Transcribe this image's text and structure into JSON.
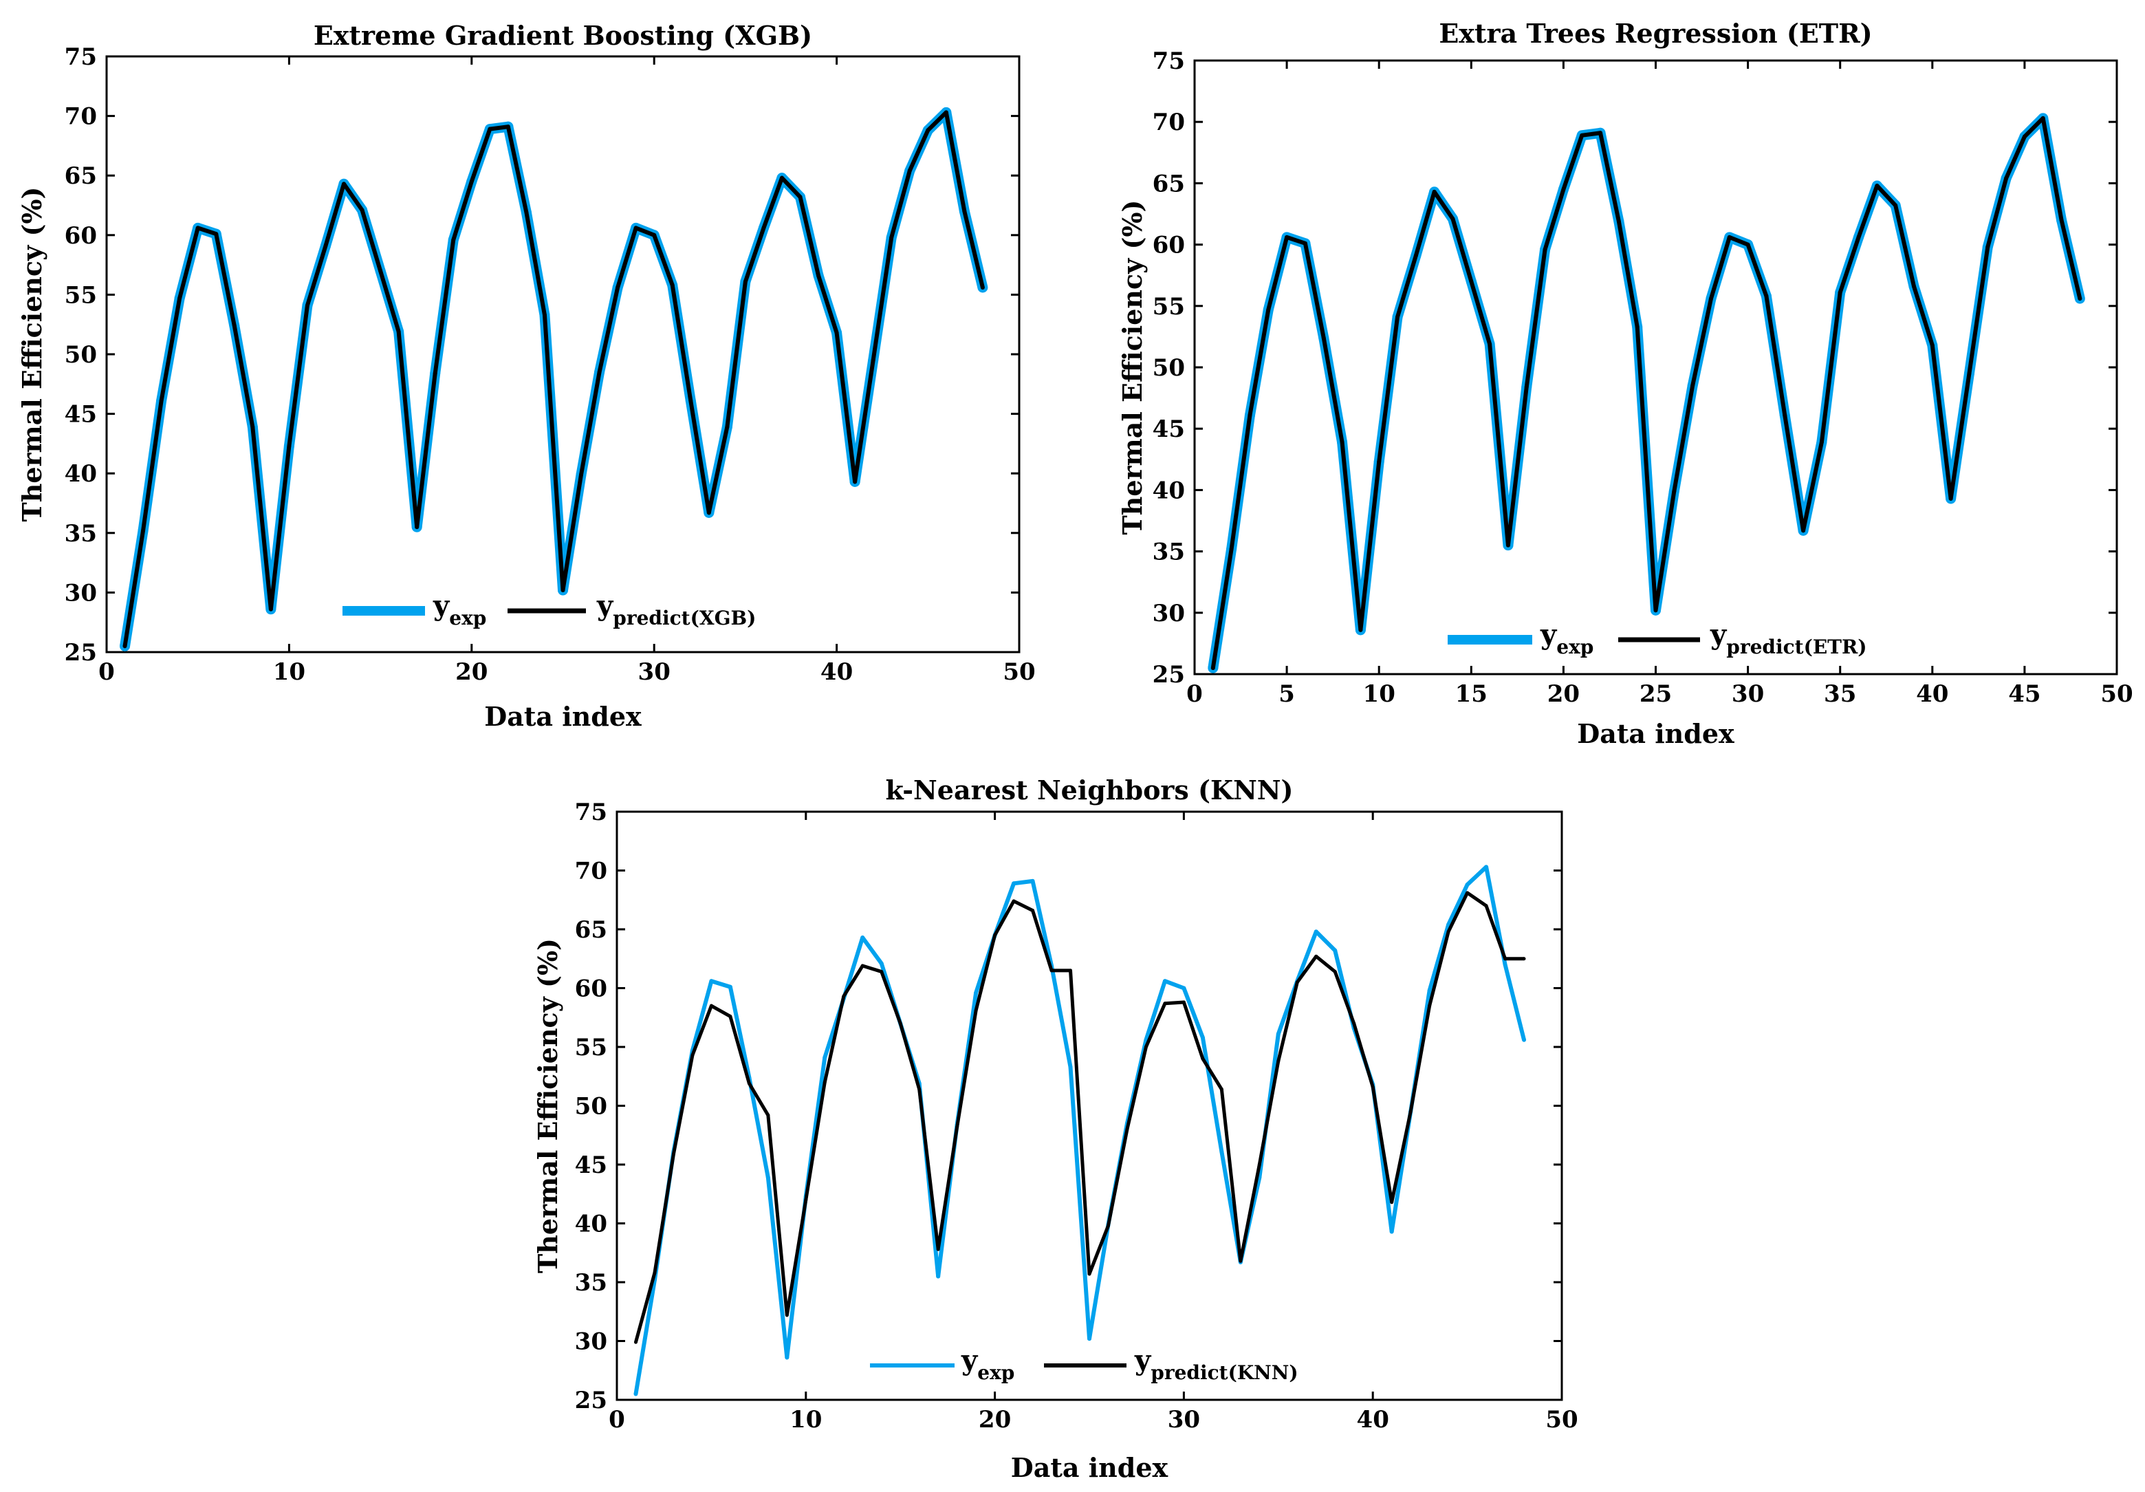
{
  "chart_data": [
    {
      "type": "line",
      "title": "Extreme Gradient Boosting (XGB)",
      "xlabel": "Data index",
      "ylabel": "Thermal Efficiency (%)",
      "xlim": [
        0,
        50
      ],
      "ylim": [
        25,
        75
      ],
      "xticks": [
        "0",
        "10",
        "20",
        "30",
        "40",
        "50"
      ],
      "yticks": [
        "25",
        "30",
        "35",
        "40",
        "45",
        "50",
        "55",
        "60",
        "65",
        "70",
        "75"
      ],
      "legend": [
        {
          "base": "y",
          "sub": "exp"
        },
        {
          "base": "y",
          "sub": "predict(XGB)"
        }
      ],
      "x": [
        1,
        2,
        3,
        4,
        5,
        6,
        7,
        8,
        9,
        10,
        11,
        12,
        13,
        14,
        15,
        16,
        17,
        18,
        19,
        20,
        21,
        22,
        23,
        24,
        25,
        26,
        27,
        28,
        29,
        30,
        31,
        32,
        33,
        34,
        35,
        36,
        37,
        38,
        39,
        40,
        41,
        42,
        43,
        44,
        45,
        46,
        47,
        48
      ],
      "series": [
        {
          "name": "y_exp",
          "color": "#00A2EE",
          "values": [
            25.5,
            35.2,
            46.1,
            54.7,
            60.6,
            60.1,
            52.4,
            43.9,
            28.6,
            42.3,
            54.1,
            59.1,
            64.3,
            62.1,
            57.0,
            51.9,
            35.5,
            48.4,
            59.6,
            64.5,
            68.9,
            69.1,
            61.9,
            53.3,
            30.2,
            39.9,
            48.5,
            55.6,
            60.6,
            60.0,
            55.8,
            46.1,
            36.7,
            43.9,
            56.1,
            60.6,
            64.8,
            63.2,
            56.6,
            51.8,
            39.3,
            49.5,
            59.8,
            65.4,
            68.8,
            70.3,
            62.0,
            55.6
          ]
        },
        {
          "name": "y_predict(XGB)",
          "color": "#000000",
          "values": [
            25.5,
            35.2,
            46.1,
            54.7,
            60.6,
            60.1,
            52.4,
            43.9,
            28.6,
            42.3,
            54.1,
            59.1,
            64.3,
            62.1,
            57.0,
            51.9,
            35.5,
            48.4,
            59.6,
            64.5,
            68.9,
            69.1,
            61.9,
            53.3,
            30.2,
            39.9,
            48.5,
            55.6,
            60.6,
            60.0,
            55.8,
            46.1,
            36.7,
            43.9,
            56.1,
            60.6,
            64.8,
            63.2,
            56.6,
            51.8,
            39.3,
            49.5,
            59.8,
            65.4,
            68.8,
            70.3,
            62.0,
            55.6
          ]
        }
      ]
    },
    {
      "type": "line",
      "title": "Extra Trees Regression (ETR)",
      "xlabel": "Data index",
      "ylabel": "Thermal Efficiency (%)",
      "xlim": [
        0,
        50
      ],
      "ylim": [
        25,
        75
      ],
      "xticks": [
        "0",
        "5",
        "10",
        "15",
        "20",
        "25",
        "30",
        "35",
        "40",
        "45",
        "50"
      ],
      "yticks": [
        "25",
        "30",
        "35",
        "40",
        "45",
        "50",
        "55",
        "60",
        "65",
        "70",
        "75"
      ],
      "legend": [
        {
          "base": "y",
          "sub": "exp"
        },
        {
          "base": "y",
          "sub": "predict(ETR)"
        }
      ],
      "x": [
        1,
        2,
        3,
        4,
        5,
        6,
        7,
        8,
        9,
        10,
        11,
        12,
        13,
        14,
        15,
        16,
        17,
        18,
        19,
        20,
        21,
        22,
        23,
        24,
        25,
        26,
        27,
        28,
        29,
        30,
        31,
        32,
        33,
        34,
        35,
        36,
        37,
        38,
        39,
        40,
        41,
        42,
        43,
        44,
        45,
        46,
        47,
        48
      ],
      "series": [
        {
          "name": "y_exp",
          "color": "#00A2EE",
          "values": [
            25.5,
            35.2,
            46.1,
            54.7,
            60.6,
            60.1,
            52.4,
            43.9,
            28.6,
            42.3,
            54.1,
            59.1,
            64.3,
            62.1,
            57.0,
            51.9,
            35.5,
            48.4,
            59.6,
            64.5,
            68.9,
            69.1,
            61.9,
            53.3,
            30.2,
            39.9,
            48.5,
            55.6,
            60.6,
            60.0,
            55.8,
            46.1,
            36.7,
            43.9,
            56.1,
            60.6,
            64.8,
            63.2,
            56.6,
            51.8,
            39.3,
            49.5,
            59.8,
            65.4,
            68.8,
            70.3,
            62.0,
            55.6
          ]
        },
        {
          "name": "y_predict(ETR)",
          "color": "#000000",
          "values": [
            25.5,
            35.2,
            46.1,
            54.7,
            60.6,
            60.1,
            52.4,
            43.9,
            28.6,
            42.3,
            54.1,
            59.1,
            64.3,
            62.1,
            57.0,
            51.9,
            35.5,
            48.4,
            59.6,
            64.5,
            68.9,
            69.1,
            61.9,
            53.3,
            30.2,
            39.9,
            48.5,
            55.6,
            60.6,
            60.0,
            55.8,
            46.1,
            36.7,
            43.9,
            56.1,
            60.6,
            64.8,
            63.2,
            56.6,
            51.8,
            39.3,
            49.5,
            59.8,
            65.4,
            68.8,
            70.3,
            62.0,
            55.6
          ]
        }
      ]
    },
    {
      "type": "line",
      "title": "k-Nearest Neighbors (KNN)",
      "xlabel": "Data index",
      "ylabel": "Thermal Efficiency (%)",
      "xlim": [
        0,
        50
      ],
      "ylim": [
        25,
        75
      ],
      "xticks": [
        "0",
        "10",
        "20",
        "30",
        "40",
        "50"
      ],
      "yticks": [
        "25",
        "30",
        "35",
        "40",
        "45",
        "50",
        "55",
        "60",
        "65",
        "70",
        "75"
      ],
      "legend": [
        {
          "base": "y",
          "sub": "exp"
        },
        {
          "base": "y",
          "sub": "predict(KNN)"
        }
      ],
      "x": [
        1,
        2,
        3,
        4,
        5,
        6,
        7,
        8,
        9,
        10,
        11,
        12,
        13,
        14,
        15,
        16,
        17,
        18,
        19,
        20,
        21,
        22,
        23,
        24,
        25,
        26,
        27,
        28,
        29,
        30,
        31,
        32,
        33,
        34,
        35,
        36,
        37,
        38,
        39,
        40,
        41,
        42,
        43,
        44,
        45,
        46,
        47,
        48
      ],
      "series": [
        {
          "name": "y_exp",
          "color": "#00A2EE",
          "values": [
            25.5,
            35.2,
            46.1,
            54.7,
            60.6,
            60.1,
            52.4,
            43.9,
            28.6,
            42.3,
            54.1,
            59.1,
            64.3,
            62.1,
            57.0,
            51.9,
            35.5,
            48.4,
            59.6,
            64.5,
            68.9,
            69.1,
            61.9,
            53.3,
            30.2,
            39.9,
            48.5,
            55.6,
            60.6,
            60.0,
            55.8,
            46.1,
            36.7,
            43.9,
            56.1,
            60.6,
            64.8,
            63.2,
            56.6,
            51.8,
            39.3,
            49.5,
            59.8,
            65.4,
            68.8,
            70.3,
            62.0,
            55.6
          ]
        },
        {
          "name": "y_predict(KNN)",
          "color": "#000000",
          "values": [
            29.9,
            35.8,
            45.9,
            54.3,
            58.5,
            57.6,
            51.9,
            49.2,
            32.2,
            42.0,
            52.0,
            59.3,
            61.9,
            61.4,
            57.0,
            51.4,
            37.8,
            48.2,
            58.1,
            64.5,
            67.4,
            66.6,
            61.5,
            61.5,
            35.7,
            39.8,
            48.0,
            55.0,
            58.7,
            58.8,
            54.0,
            51.4,
            36.8,
            45.0,
            53.8,
            60.5,
            62.7,
            61.4,
            57.0,
            51.6,
            41.8,
            49.5,
            58.5,
            64.8,
            68.1,
            67.0,
            62.5,
            62.5
          ]
        }
      ]
    }
  ]
}
